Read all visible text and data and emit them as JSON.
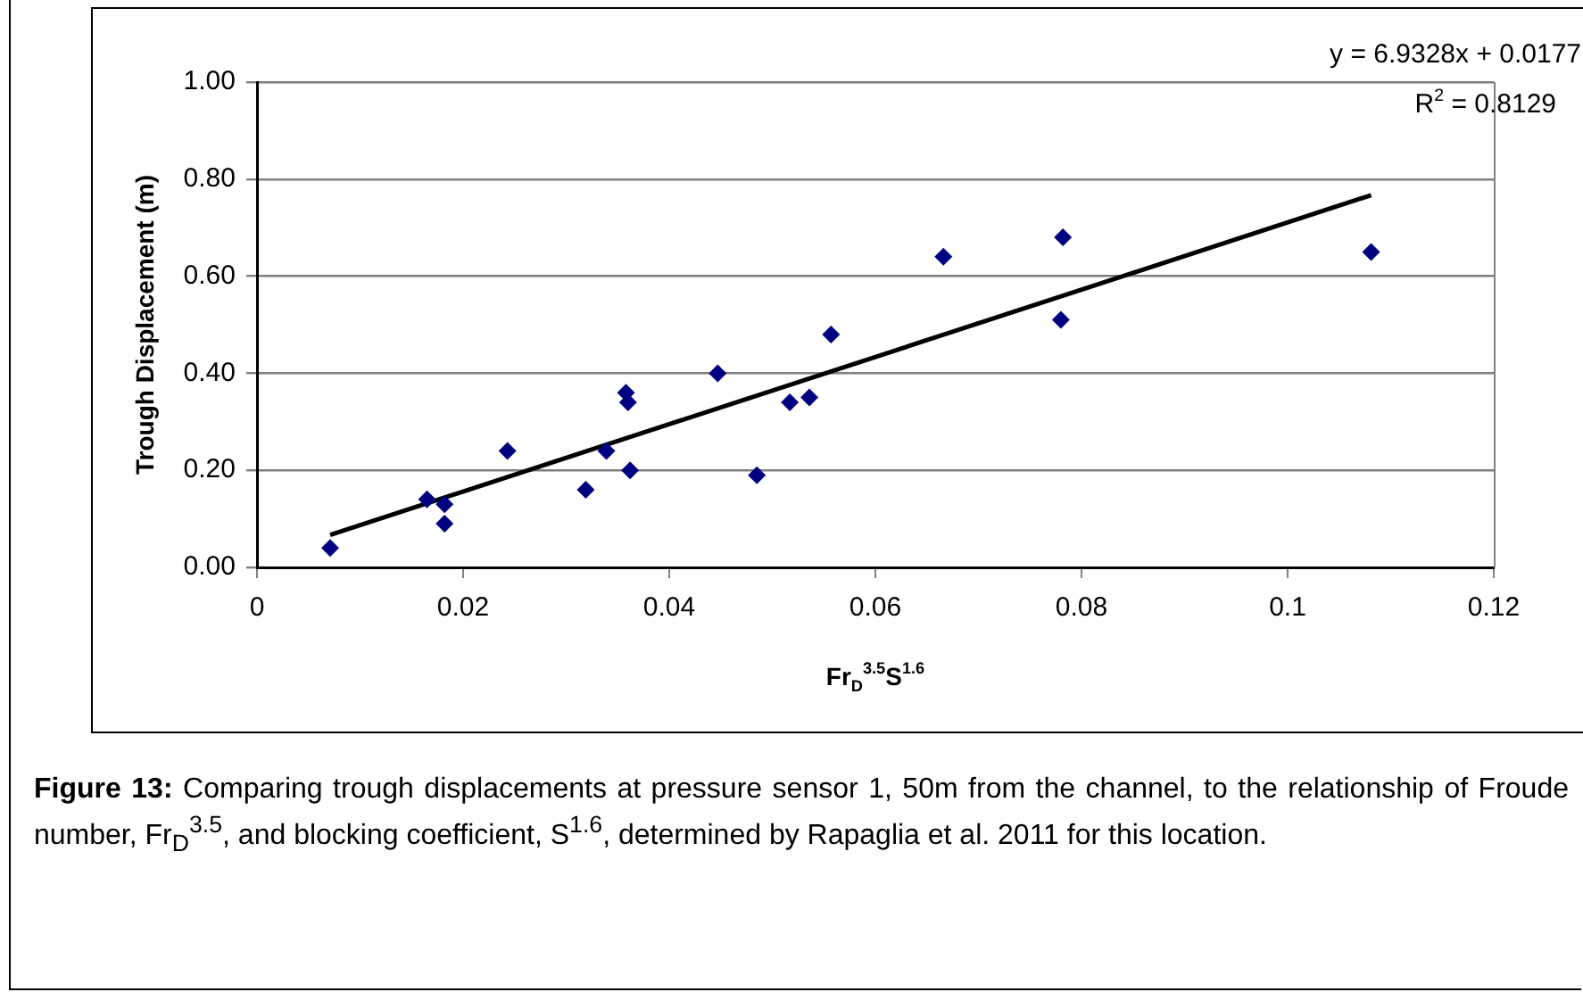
{
  "chart_data": {
    "type": "scatter",
    "xlabel": "Fr$_{D}$$^{3.5}$S$^{1.6}$",
    "ylabel": "Trough Displacement (m)",
    "series": [
      {
        "color": "#000080",
        "x": [
          0.0071,
          0.0165,
          0.0182,
          0.0182,
          0.0243,
          0.0319,
          0.0339,
          0.0358,
          0.036,
          0.0362,
          0.0447,
          0.0485,
          0.0517,
          0.0536,
          0.0557,
          0.0666,
          0.0782,
          0.078,
          0.1081
        ],
        "values": [
          0.04,
          0.14,
          0.13,
          0.09,
          0.24,
          0.16,
          0.24,
          0.36,
          0.34,
          0.2,
          0.4,
          0.19,
          0.34,
          0.35,
          0.48,
          0.64,
          0.68,
          0.51,
          0.65
        ]
      },
      {
        "type": "line",
        "color": "#000000",
        "marker": "none",
        "x": [
          0.0071,
          0.1081
        ],
        "values": [
          0.067,
          0.767
        ]
      }
    ],
    "xlim": [
      0,
      0.12
    ],
    "xticks": [
      0,
      0.02,
      0.04,
      0.06,
      0.08,
      0.1,
      0.12
    ],
    "ylim": [
      0,
      1
    ],
    "yticks": [
      {
        "value": 0,
        "label": "0.00"
      },
      {
        "value": 0.2,
        "label": "0.20"
      },
      {
        "value": 0.4,
        "label": "0.40"
      },
      {
        "value": 0.6,
        "label": "0.60"
      },
      {
        "value": 0.8,
        "label": "0.80"
      },
      {
        "value": 1,
        "label": "1.00"
      }
    ],
    "grid": "y",
    "legend": false,
    "marker": "diamond",
    "annotations": [
      "y = 6.9328x + 0.0177",
      "R$^{2}$ = 0.8129",
      "Figure 13: Comparing trough displacements at pressure sensor 1, 50m from the channel, to the relationship of Froude number, Fr$_{D}$$^{3.5}$, and blocking coefficient, S$^{1.6}$, determined by Rapaglia et al. 2011 for this location."
    ]
  }
}
